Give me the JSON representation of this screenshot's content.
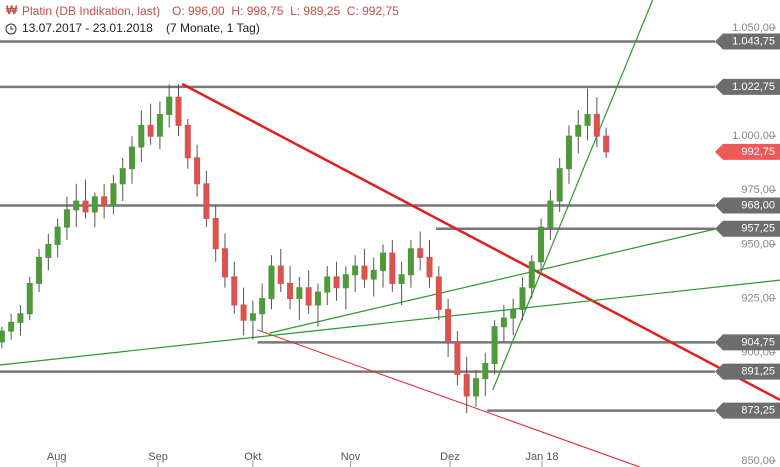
{
  "chart_data": {
    "type": "candlestick",
    "title": "Platin (DB Indikation, last)",
    "subtitle": "O: 996,00  H: 998,75  L: 989,25  C: 992,75",
    "period": "13.07.2017 - 23.01.2018",
    "period_note": "(7 Monate, 1 Tag)",
    "up_color": "#4e9a3a",
    "down_color": "#d9534f",
    "candles": [
      [
        905,
        912,
        902,
        910
      ],
      [
        910,
        918,
        906,
        914
      ],
      [
        914,
        922,
        908,
        918
      ],
      [
        918,
        935,
        915,
        932
      ],
      [
        932,
        948,
        928,
        944
      ],
      [
        944,
        955,
        938,
        950
      ],
      [
        950,
        962,
        944,
        958
      ],
      [
        958,
        972,
        952,
        966
      ],
      [
        966,
        978,
        958,
        970
      ],
      [
        970,
        980,
        962,
        965
      ],
      [
        965,
        974,
        958,
        972
      ],
      [
        972,
        978,
        962,
        968
      ],
      [
        968,
        982,
        964,
        978
      ],
      [
        978,
        990,
        970,
        985
      ],
      [
        985,
        1000,
        978,
        995
      ],
      [
        995,
        1012,
        988,
        1005
      ],
      [
        1005,
        1015,
        996,
        1000
      ],
      [
        1000,
        1016,
        994,
        1010
      ],
      [
        1010,
        1024,
        1004,
        1018
      ],
      [
        1018,
        1024,
        1000,
        1005
      ],
      [
        1005,
        1008,
        985,
        990
      ],
      [
        990,
        996,
        972,
        978
      ],
      [
        978,
        984,
        958,
        962
      ],
      [
        962,
        968,
        942,
        948
      ],
      [
        948,
        955,
        930,
        935
      ],
      [
        935,
        942,
        918,
        922
      ],
      [
        922,
        930,
        908,
        915
      ],
      [
        915,
        924,
        906,
        918
      ],
      [
        918,
        932,
        910,
        925
      ],
      [
        925,
        945,
        920,
        940
      ],
      [
        940,
        948,
        928,
        932
      ],
      [
        932,
        940,
        920,
        925
      ],
      [
        925,
        935,
        915,
        930
      ],
      [
        930,
        938,
        918,
        922
      ],
      [
        922,
        932,
        912,
        928
      ],
      [
        928,
        940,
        922,
        935
      ],
      [
        935,
        942,
        924,
        930
      ],
      [
        930,
        940,
        920,
        936
      ],
      [
        936,
        945,
        928,
        940
      ],
      [
        940,
        948,
        930,
        934
      ],
      [
        934,
        944,
        926,
        938
      ],
      [
        938,
        950,
        930,
        946
      ],
      [
        946,
        952,
        928,
        932
      ],
      [
        932,
        942,
        922,
        936
      ],
      [
        936,
        952,
        930,
        948
      ],
      [
        948,
        956,
        938,
        944
      ],
      [
        944,
        952,
        930,
        935
      ],
      [
        935,
        940,
        915,
        920
      ],
      [
        920,
        925,
        898,
        905
      ],
      [
        905,
        910,
        885,
        890
      ],
      [
        890,
        898,
        872,
        880
      ],
      [
        880,
        892,
        875,
        888
      ],
      [
        888,
        900,
        880,
        895
      ],
      [
        895,
        915,
        890,
        912
      ],
      [
        912,
        922,
        905,
        916
      ],
      [
        916,
        925,
        908,
        920
      ],
      [
        920,
        935,
        915,
        930
      ],
      [
        930,
        945,
        925,
        942
      ],
      [
        942,
        962,
        938,
        958
      ],
      [
        958,
        975,
        952,
        970
      ],
      [
        970,
        990,
        965,
        985
      ],
      [
        985,
        1005,
        978,
        1000
      ],
      [
        1000,
        1012,
        992,
        1005
      ],
      [
        1005,
        1022,
        998,
        1010
      ],
      [
        1010,
        1018,
        995,
        1000
      ],
      [
        1000,
        1004,
        990,
        992.75
      ]
    ],
    "xlim": [
      -0.2,
      83.7
    ],
    "ylim": [
      847.2,
      1062.9
    ],
    "xticks": [
      {
        "value": 5.9,
        "label": "Aug"
      },
      {
        "value": 16.8,
        "label": "Sep"
      },
      {
        "value": 27,
        "label": "Okt"
      },
      {
        "value": 37.5,
        "label": "Nov"
      },
      {
        "value": 48.2,
        "label": "Dez"
      },
      {
        "value": 58.1,
        "label": "Jan 18"
      }
    ],
    "yticks": [
      {
        "value": 1050,
        "label": "1.050,00"
      },
      {
        "value": 1000,
        "label": "1.000,00"
      },
      {
        "value": 975,
        "label": "975,00"
      },
      {
        "value": 950,
        "label": "950,00"
      },
      {
        "value": 925,
        "label": "925,00"
      },
      {
        "value": 900,
        "label": "900,00"
      },
      {
        "value": 850,
        "label": "850,00"
      }
    ],
    "levels": [
      {
        "value": 1043.75,
        "label": "1.043,75",
        "from": -0.2
      },
      {
        "value": 1022.75,
        "label": "1.022,75",
        "from": -0.2
      },
      {
        "value": 968,
        "label": "968,00",
        "from": -0.2
      },
      {
        "value": 957.25,
        "label": "957,25",
        "from": 46.7
      },
      {
        "value": 904.75,
        "label": "904,75",
        "from": 27.5
      },
      {
        "value": 891.25,
        "label": "891,25",
        "from": -0.2
      },
      {
        "value": 873.25,
        "label": "873,25",
        "from": 52.2
      }
    ],
    "last": {
      "value": 992.75,
      "label": "992,75",
      "color": "#f0595a"
    },
    "lines": [
      {
        "from": [
          19.4,
          1024.1
        ],
        "to": [
          83.7,
          878.2
        ],
        "color": "#e02020",
        "width": 2.5
      },
      {
        "from": [
          27.5,
          910.5
        ],
        "to": [
          68.6,
          847.2
        ],
        "color": "#e02020",
        "width": 1
      },
      {
        "from": [
          52.8,
          882.8
        ],
        "to": [
          70,
          1062.9
        ],
        "color": "#2a9a2a",
        "width": 1.2
      },
      {
        "from": [
          28.8,
          909.1
        ],
        "to": [
          77.2,
          957.6
        ],
        "color": "#2a9a2a",
        "width": 1.2
      },
      {
        "from": [
          -0.2,
          894.3
        ],
        "to": [
          83.7,
          933.5
        ],
        "color": "#2a9a2a",
        "width": 1.2
      }
    ]
  }
}
